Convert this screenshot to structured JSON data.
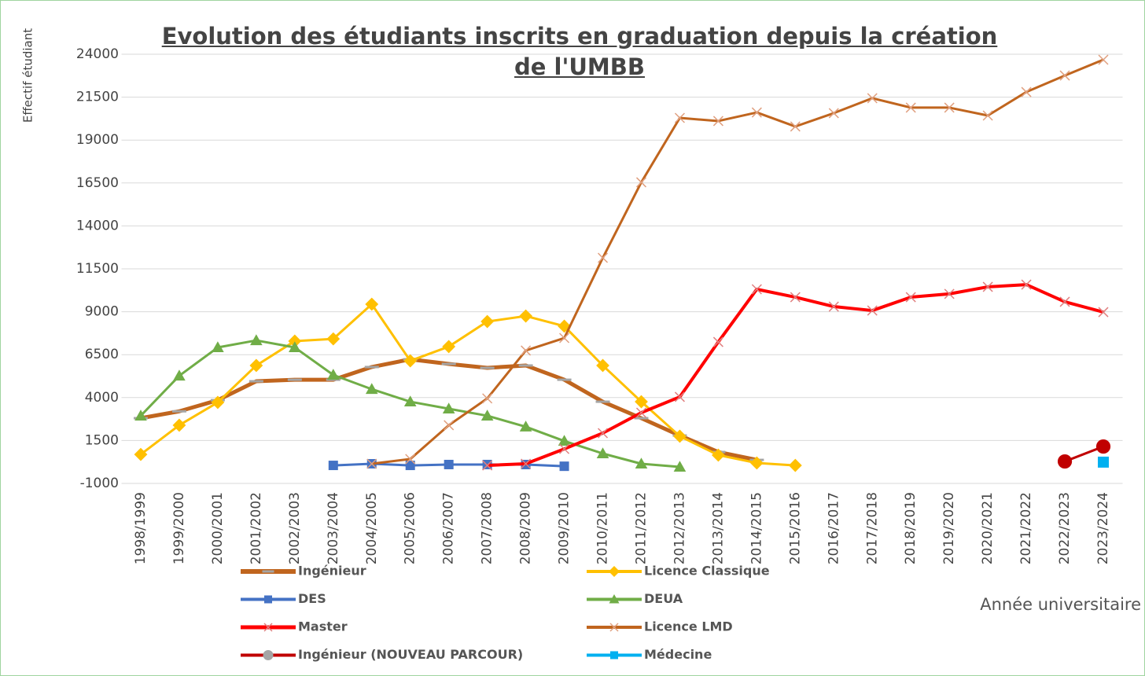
{
  "chart_data": {
    "type": "line",
    "title": "Evolution des étudiants inscrits en graduation depuis la création de l'UMBB",
    "y_label": "Effectif étudiant",
    "x_label": "Année universitaire",
    "categories": [
      "1998/1999",
      "1999/2000",
      "2000/2001",
      "2001/2002",
      "2002/2003",
      "2003/2004",
      "2004/2005",
      "2005/2006",
      "2006/2007",
      "2007/2008",
      "2008/2009",
      "2009/2010",
      "2010/2011",
      "2011/2012",
      "2012/2013",
      "2013/2014",
      "2014/2015",
      "2015/2016",
      "2016/2017",
      "2017/2018",
      "2018/2019",
      "2019/2020",
      "2020/2021",
      "2021/2022",
      "2022/2023",
      "2023/2024"
    ],
    "ylim": [
      -1000,
      24000
    ],
    "yticks": [
      -1000,
      1500,
      4000,
      6500,
      9000,
      11500,
      14000,
      16500,
      19000,
      21500,
      24000
    ],
    "grid": true,
    "series": [
      {
        "name": "Ingénieur",
        "color": "#c0651e",
        "marker": "dash",
        "marker_color": "#a5a5a5",
        "width": 5,
        "values": [
          2800,
          3200,
          3850,
          4950,
          5040,
          5040,
          5780,
          6230,
          5960,
          5730,
          5870,
          5040,
          3760,
          2800,
          1790,
          830,
          370,
          null,
          null,
          null,
          null,
          null,
          null,
          null,
          null,
          null
        ]
      },
      {
        "name": "Licence Classique",
        "color": "#ffc000",
        "marker": "diamond",
        "marker_color": "#ffc000",
        "width": 3,
        "values": [
          690,
          2390,
          3720,
          5870,
          7290,
          7420,
          9440,
          6140,
          6970,
          8430,
          8750,
          8160,
          5870,
          3760,
          1750,
          650,
          190,
          50,
          null,
          null,
          null,
          null,
          null,
          null,
          null,
          null
        ]
      },
      {
        "name": "DES",
        "color": "#4472c4",
        "marker": "square",
        "marker_color": "#4472c4",
        "width": 3,
        "values": [
          null,
          null,
          null,
          null,
          null,
          50,
          145,
          50,
          100,
          100,
          100,
          0,
          null,
          null,
          null,
          null,
          null,
          null,
          null,
          null,
          null,
          null,
          null,
          null,
          null,
          null
        ]
      },
      {
        "name": "DEUA",
        "color": "#70ad47",
        "marker": "triangle",
        "marker_color": "#70ad47",
        "width": 3,
        "values": [
          2940,
          5270,
          6920,
          7330,
          6920,
          5320,
          4490,
          3760,
          3350,
          2940,
          2300,
          1470,
          740,
          145,
          -40,
          null,
          null,
          null,
          null,
          null,
          null,
          null,
          null,
          null,
          null,
          null
        ]
      },
      {
        "name": "Master",
        "color": "#ff0000",
        "marker": "x",
        "marker_color": "#e08080",
        "width": 4,
        "values": [
          null,
          null,
          null,
          null,
          null,
          null,
          null,
          null,
          null,
          50,
          145,
          1010,
          1930,
          3120,
          4040,
          7240,
          10310,
          9850,
          9300,
          9070,
          9850,
          10040,
          10450,
          10580,
          9580,
          8980
        ]
      },
      {
        "name": "Licence LMD",
        "color": "#c0651e",
        "marker": "x",
        "marker_color": "#e0a080",
        "width": 3,
        "values": [
          null,
          null,
          null,
          null,
          null,
          null,
          145,
          420,
          2390,
          3950,
          6740,
          7470,
          12140,
          16540,
          20290,
          20110,
          20610,
          19790,
          20570,
          21440,
          20890,
          20890,
          20430,
          21800,
          22760,
          23680
        ]
      },
      {
        "name": "Ingénieur (NOUVEAU PARCOUR)",
        "color": "#c00000",
        "marker": "circle",
        "marker_color": "#c00000",
        "width": 3,
        "values": [
          null,
          null,
          null,
          null,
          null,
          null,
          null,
          null,
          null,
          null,
          null,
          null,
          null,
          null,
          null,
          null,
          null,
          null,
          null,
          null,
          null,
          null,
          null,
          null,
          280,
          1150
        ]
      },
      {
        "name": "Médecine",
        "color": "#00b0f0",
        "marker": "square",
        "marker_color": "#00b0f0",
        "width": 3,
        "values": [
          null,
          null,
          null,
          null,
          null,
          null,
          null,
          null,
          null,
          null,
          null,
          null,
          null,
          null,
          null,
          null,
          null,
          null,
          null,
          null,
          null,
          null,
          null,
          null,
          null,
          240
        ]
      }
    ]
  }
}
